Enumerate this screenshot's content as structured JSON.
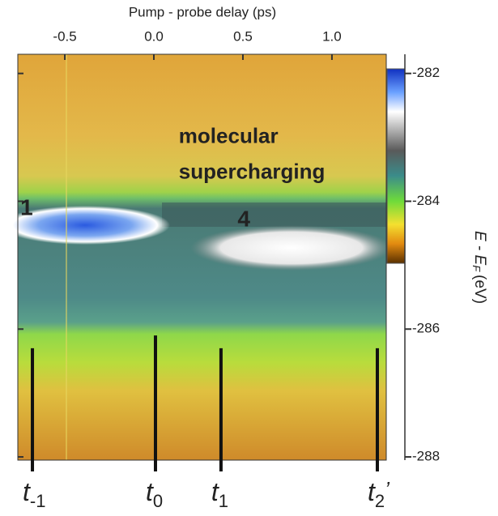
{
  "chart_data": {
    "type": "heatmap",
    "x_label": "Pump - probe delay (ps)",
    "y_label": {
      "main": "E - E",
      "sub": "F",
      "unit": "(eV)"
    },
    "xlim": [
      -0.764,
      1.305
    ],
    "xticks": [
      -0.5,
      {
        "value": 0,
        "label": "0.0"
      },
      0.5,
      {
        "value": 1,
        "label": "1.0"
      }
    ],
    "ylim": [
      -288.05,
      -281.7
    ],
    "yticks": [
      -282,
      -284,
      -286,
      -288
    ],
    "annotations": [
      {
        "text": "molecular",
        "x": 0.14,
        "y": -283.0
      },
      {
        "text": "supercharging",
        "x": 0.14,
        "y": -283.56
      },
      {
        "text": "1",
        "x": -0.75,
        "y": -284.12
      },
      {
        "text": "4",
        "x": 0.47,
        "y": -284.3
      }
    ],
    "markers": [
      {
        "label": "t",
        "sub": "-1",
        "x": -0.682,
        "y_top": -286.3
      },
      {
        "label": "t",
        "sub": "0",
        "x": 0.009,
        "y_top": -286.1
      },
      {
        "label": "t",
        "sub": "1",
        "x": 0.377,
        "y_top": -286.3
      },
      {
        "label": "t",
        "sub": "2",
        "prime": "’",
        "x": 1.255,
        "y_top": -286.3
      }
    ]
  }
}
